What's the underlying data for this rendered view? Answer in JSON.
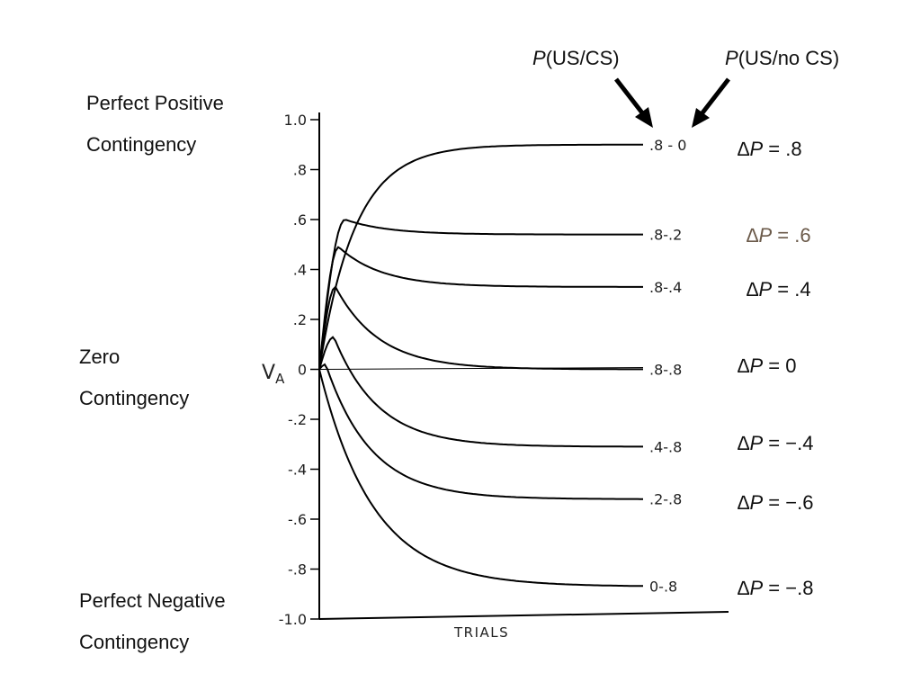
{
  "left_labels": {
    "top": [
      "Perfect Positive",
      "Contingency"
    ],
    "middle": [
      "Zero",
      "Contingency"
    ],
    "bottom": [
      "Perfect Negative",
      "Contingency"
    ]
  },
  "headers": {
    "us_cs": {
      "italic": "P",
      "rest": "(US/CS)"
    },
    "us_no_cs": {
      "italic": "P",
      "rest": "(US/no CS)"
    }
  },
  "delta_labels": [
    {
      "delta": "∆",
      "p": "P",
      "rest": " = .8",
      "color": "#111111"
    },
    {
      "delta": "∆",
      "p": "P",
      "rest": " = .6",
      "color": "#6b5a4a"
    },
    {
      "delta": "∆",
      "p": "P",
      "rest": " = .4",
      "color": "#111111"
    },
    {
      "delta": "∆",
      "p": "P",
      "rest": " = 0",
      "color": "#111111"
    },
    {
      "delta": "∆",
      "p": "P",
      "rest": " = −.4",
      "color": "#111111"
    },
    {
      "delta": "∆",
      "p": "P",
      "rest": " = −.6",
      "color": "#111111"
    },
    {
      "delta": "∆",
      "p": "P",
      "rest": " = −.8",
      "color": "#111111"
    }
  ],
  "chart_data": {
    "type": "line",
    "ylabel": "V",
    "ylabel_sub": "A",
    "xlabel": "TRIALS",
    "ylim": [
      -1.0,
      1.0
    ],
    "yticks": [
      1.0,
      0.8,
      0.6,
      0.4,
      0.2,
      0,
      -0.2,
      -0.4,
      -0.6,
      -0.8,
      -1.0
    ],
    "ytick_labels": [
      "1.0",
      ".8",
      ".6",
      ".4",
      ".2",
      "0",
      "-.2",
      "-.4",
      "-.6",
      "-.8",
      "-1.0"
    ],
    "grid": false,
    "series": [
      {
        "name": ".8 - 0",
        "asymptote": 0.9,
        "peak": null,
        "peak_trial": null
      },
      {
        "name": ".8-.2",
        "asymptote": 0.54,
        "peak": 0.6,
        "peak_trial": 0.08
      },
      {
        "name": ".8-.4",
        "asymptote": 0.33,
        "peak": 0.49,
        "peak_trial": 0.06
      },
      {
        "name": ".8-.8",
        "asymptote": 0.0,
        "peak": 0.33,
        "peak_trial": 0.05
      },
      {
        "name": ".4-.8",
        "asymptote": -0.31,
        "peak": 0.13,
        "peak_trial": 0.045
      },
      {
        "name": ".2-.8",
        "asymptote": -0.52,
        "peak": 0.02,
        "peak_trial": 0.02
      },
      {
        "name": "0-.8",
        "asymptote": -0.87,
        "peak": null,
        "peak_trial": null
      }
    ]
  }
}
